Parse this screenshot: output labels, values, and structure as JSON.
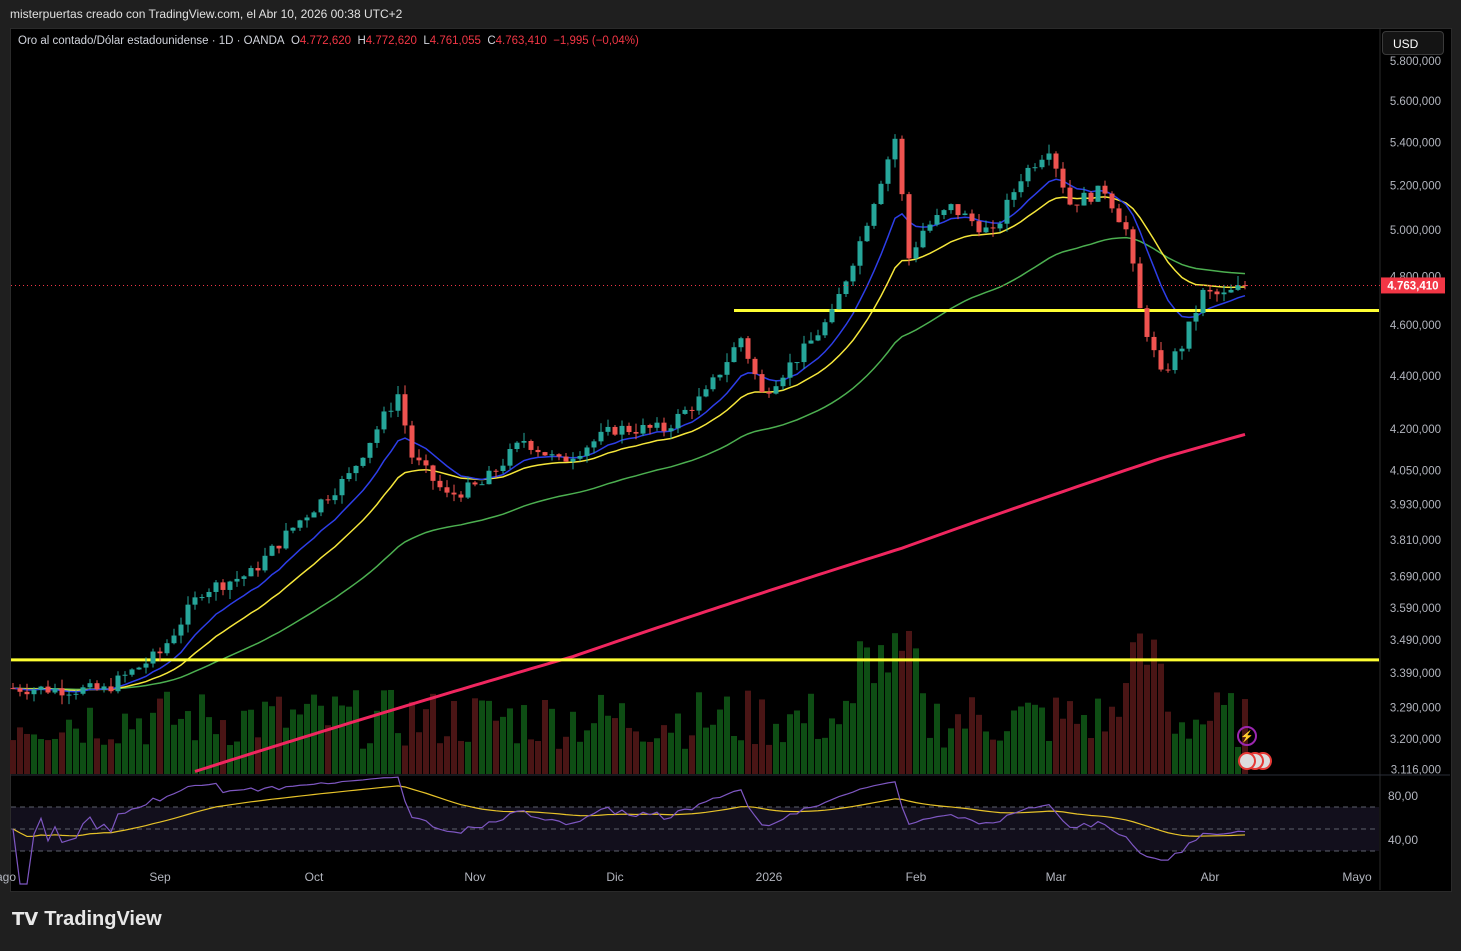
{
  "credit": "misterpuertas creado con TradingView.com, el Abr 10, 2026 00:38 UTC+2",
  "legend": {
    "symbol": "Oro al contado/Dólar estadounidense · 1D · OANDA",
    "o_label": "O",
    "o": "4.772,620",
    "h_label": "H",
    "h": "4.772,620",
    "l_label": "L",
    "l": "4.761,055",
    "c_label": "C",
    "c": "4.763,410",
    "change": "−1,995 (−0,04%)"
  },
  "currency": "USD",
  "brand": "TradingView",
  "colors": {
    "up": "#26a69a",
    "down": "#ef5350",
    "ema_fast": "#2d3ee8",
    "ema_mid": "#f5e63a",
    "ema_slow": "#4caf50",
    "ma200": "#f0265f",
    "hline": "#ffff33",
    "rsi": "#7e57c2",
    "rsi_ma": "#e6c229",
    "last": "#f23645"
  },
  "chart_data": {
    "type": "candlestick",
    "title": "Oro al contado/Dólar estadounidense · 1D · OANDA",
    "scale": "log",
    "ylim": [
      3116,
      5800
    ],
    "y_ticks": [
      "5.800,000",
      "5.600,000",
      "5.400,000",
      "5.200,000",
      "5.000,000",
      "4.800,000",
      "4.600,000",
      "4.400,000",
      "4.200,000",
      "4.050,000",
      "3.930,000",
      "3.810,000",
      "3.690,000",
      "3.590,000",
      "3.490,000",
      "3.390,000",
      "3.290,000",
      "3.200,000",
      "3.116,000"
    ],
    "y_tick_values": [
      5800,
      5600,
      5400,
      5200,
      5000,
      4800,
      4600,
      4400,
      4200,
      4050,
      3930,
      3810,
      3690,
      3590,
      3490,
      3390,
      3290,
      3200,
      3116
    ],
    "x_ticks": [
      {
        "label": "ago",
        "bar": -1
      },
      {
        "label": "Sep",
        "bar": 21
      },
      {
        "label": "Oct",
        "bar": 43
      },
      {
        "label": "Nov",
        "bar": 66
      },
      {
        "label": "Dic",
        "bar": 86
      },
      {
        "label": "2026",
        "bar": 108
      },
      {
        "label": "Feb",
        "bar": 129
      },
      {
        "label": "Mar",
        "bar": 149
      },
      {
        "label": "Abr",
        "bar": 171
      },
      {
        "label": "Mayo",
        "bar": 192
      }
    ],
    "close_keypoints": [
      [
        0,
        3346
      ],
      [
        13,
        3340
      ],
      [
        21,
        3450
      ],
      [
        27,
        3645
      ],
      [
        34,
        3700
      ],
      [
        41,
        3877
      ],
      [
        48,
        4030
      ],
      [
        55,
        4330
      ],
      [
        57,
        4100
      ],
      [
        62,
        3960
      ],
      [
        67,
        4000
      ],
      [
        73,
        4160
      ],
      [
        78,
        4080
      ],
      [
        86,
        4200
      ],
      [
        93,
        4200
      ],
      [
        99,
        4330
      ],
      [
        104,
        4550
      ],
      [
        107,
        4330
      ],
      [
        113,
        4500
      ],
      [
        117,
        4640
      ],
      [
        121,
        4950
      ],
      [
        126,
        5420
      ],
      [
        128,
        4880
      ],
      [
        130,
        5000
      ],
      [
        134,
        5100
      ],
      [
        140,
        4980
      ],
      [
        144,
        5240
      ],
      [
        148,
        5380
      ],
      [
        151,
        5120
      ],
      [
        156,
        5180
      ],
      [
        159,
        5000
      ],
      [
        161,
        4660
      ],
      [
        164,
        4400
      ],
      [
        167,
        4520
      ],
      [
        170,
        4730
      ],
      [
        173,
        4720
      ],
      [
        176,
        4763
      ]
    ],
    "ma200_keypoints": [
      [
        26,
        3110
      ],
      [
        80,
        3440
      ],
      [
        127,
        3783
      ],
      [
        164,
        4093
      ],
      [
        176,
        4180
      ]
    ],
    "horizontal_levels": [
      {
        "price": 4660,
        "from_bar": 103
      },
      {
        "price": 3430,
        "from_bar": 0
      }
    ],
    "last_price": "4.763,410",
    "last_value": 4763.41,
    "rsi": {
      "ticks": [
        "80,00",
        "40,00"
      ],
      "bands": [
        70,
        50,
        30
      ]
    }
  }
}
